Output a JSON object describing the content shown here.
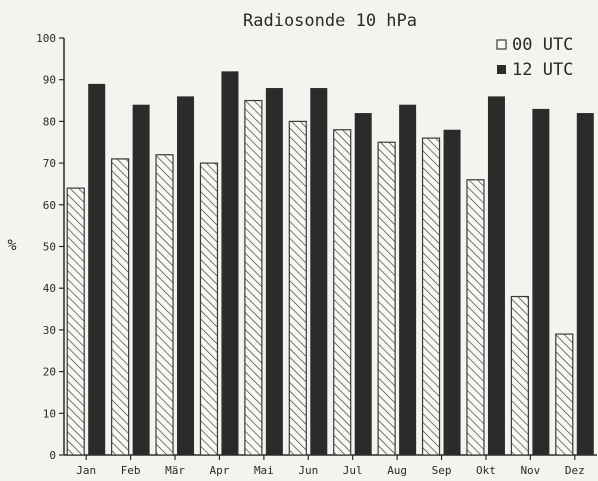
{
  "chart_data": {
    "type": "bar",
    "title": "Radiosonde 10 hPa",
    "xlabel": "",
    "ylabel": "%",
    "ylim": [
      0,
      100
    ],
    "yticks": [
      0,
      10,
      20,
      30,
      40,
      50,
      60,
      70,
      80,
      90,
      100
    ],
    "categories": [
      "Jan",
      "Feb",
      "Mär",
      "Apr",
      "Mai",
      "Jun",
      "Jul",
      "Aug",
      "Sep",
      "Okt",
      "Nov",
      "Dez"
    ],
    "series": [
      {
        "name": "00 UTC",
        "values": [
          64,
          71,
          72,
          70,
          85,
          80,
          78,
          75,
          76,
          66,
          38,
          29
        ],
        "style": "hatched"
      },
      {
        "name": "12 UTC",
        "values": [
          89,
          84,
          86,
          92,
          88,
          88,
          82,
          84,
          78,
          86,
          83,
          82
        ],
        "style": "solid"
      }
    ],
    "legend_position": "top-right",
    "grid": false,
    "colors": {
      "solid": "#2b2b2b",
      "hatch": "#3a3a3a",
      "background": "#f4f3ee"
    }
  }
}
